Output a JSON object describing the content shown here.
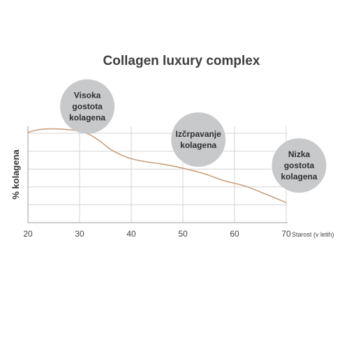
{
  "chart_data": {
    "type": "line",
    "title": "Collagen luxury complex",
    "xlabel": "Starost (v letih)",
    "ylabel": "% kolagena",
    "xlim": [
      20,
      72
    ],
    "ylim": [
      0,
      5
    ],
    "x_ticks": [
      "20",
      "30",
      "40",
      "50",
      "60",
      "70"
    ],
    "grid": true,
    "colors": {
      "line": "#c9a07e",
      "grid": "#d4d4d4",
      "axis": "#9c9c9c",
      "bubble": "#c7c9ca"
    },
    "series": [
      {
        "x": [
          20,
          22,
          24,
          26,
          28,
          30,
          32,
          34,
          36,
          38,
          40,
          43,
          46,
          50,
          54,
          58,
          62,
          66,
          70
        ],
        "y": [
          5.05,
          5.2,
          5.25,
          5.24,
          5.2,
          5.12,
          4.92,
          4.55,
          4.1,
          3.8,
          3.58,
          3.4,
          3.28,
          3.05,
          2.75,
          2.35,
          2.05,
          1.6,
          1.12
        ]
      }
    ],
    "annotations": [
      {
        "label": [
          "Visoka",
          "gostota",
          "kolagena"
        ],
        "x": 31.5,
        "y": 6.5
      },
      {
        "label": [
          "Izčrpavanje",
          "kolagena"
        ],
        "x": 53,
        "y": 4.65
      },
      {
        "label": [
          "Nizka",
          "gostota",
          "kolagena"
        ],
        "x": 72.5,
        "y": 3.2
      }
    ]
  }
}
